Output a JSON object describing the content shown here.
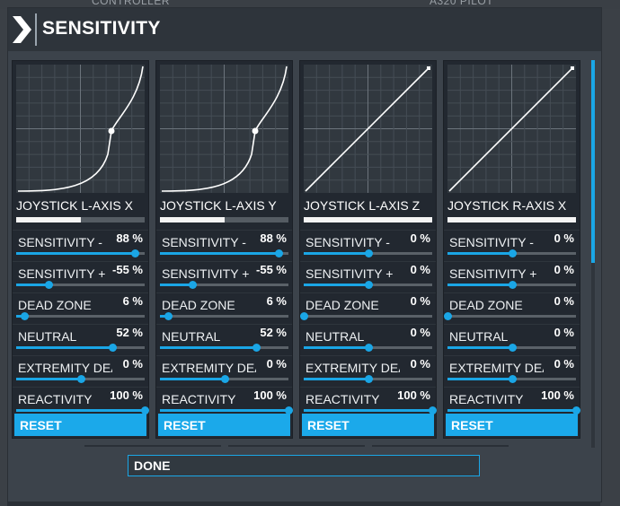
{
  "background": {
    "left_header": "CONTROLLER",
    "right_header": "A320 PILOT"
  },
  "dialog": {
    "title": "SENSITIVITY"
  },
  "colors": {
    "accent": "#1ba9ea",
    "panel_bg": "#222830",
    "dialog_bg": "#3c434b"
  },
  "panels": [
    {
      "axis_name": "JOYSTICK L-AXIS X",
      "axis_position": 0.5,
      "curve": "s-curve",
      "params": [
        {
          "label": "SENSITIVITY -",
          "value": "88 %",
          "slider": 0.92
        },
        {
          "label": "SENSITIVITY +",
          "value": "-55 %",
          "slider": 0.25
        },
        {
          "label": "DEAD ZONE",
          "value": "6 %",
          "slider": 0.06
        },
        {
          "label": "NEUTRAL",
          "value": "52 %",
          "slider": 0.75
        },
        {
          "label": "EXTREMITY DEAD ZONE",
          "value": "0 %",
          "slider": 0.5
        },
        {
          "label": "REACTIVITY",
          "value": "100 %",
          "slider": 1.0
        }
      ],
      "reset_label": "RESET"
    },
    {
      "axis_name": "JOYSTICK L-AXIS Y",
      "axis_position": 0.5,
      "curve": "s-curve",
      "params": [
        {
          "label": "SENSITIVITY -",
          "value": "88 %",
          "slider": 0.92
        },
        {
          "label": "SENSITIVITY +",
          "value": "-55 %",
          "slider": 0.25
        },
        {
          "label": "DEAD ZONE",
          "value": "6 %",
          "slider": 0.06
        },
        {
          "label": "NEUTRAL",
          "value": "52 %",
          "slider": 0.75
        },
        {
          "label": "EXTREMITY DEAD ZONE",
          "value": "0 %",
          "slider": 0.5
        },
        {
          "label": "REACTIVITY",
          "value": "100 %",
          "slider": 1.0
        }
      ],
      "reset_label": "RESET"
    },
    {
      "axis_name": "JOYSTICK L-AXIS Z",
      "axis_position": 1.0,
      "curve": "linear",
      "params": [
        {
          "label": "SENSITIVITY -",
          "value": "0 %",
          "slider": 0.5
        },
        {
          "label": "SENSITIVITY +",
          "value": "0 %",
          "slider": 0.5
        },
        {
          "label": "DEAD ZONE",
          "value": "0 %",
          "slider": 0.0
        },
        {
          "label": "NEUTRAL",
          "value": "0 %",
          "slider": 0.5
        },
        {
          "label": "EXTREMITY DEAD ZONE",
          "value": "0 %",
          "slider": 0.5
        },
        {
          "label": "REACTIVITY",
          "value": "100 %",
          "slider": 1.0
        }
      ],
      "reset_label": "RESET"
    },
    {
      "axis_name": "JOYSTICK R-AXIS X",
      "axis_position": 1.0,
      "curve": "linear",
      "params": [
        {
          "label": "SENSITIVITY -",
          "value": "0 %",
          "slider": 0.5
        },
        {
          "label": "SENSITIVITY +",
          "value": "0 %",
          "slider": 0.5
        },
        {
          "label": "DEAD ZONE",
          "value": "0 %",
          "slider": 0.0
        },
        {
          "label": "NEUTRAL",
          "value": "0 %",
          "slider": 0.5
        },
        {
          "label": "EXTREMITY DEAD ZONE",
          "value": "0 %",
          "slider": 0.5
        },
        {
          "label": "REACTIVITY",
          "value": "100 %",
          "slider": 1.0
        }
      ],
      "reset_label": "RESET"
    }
  ],
  "footer": {
    "done_label": "DONE"
  }
}
